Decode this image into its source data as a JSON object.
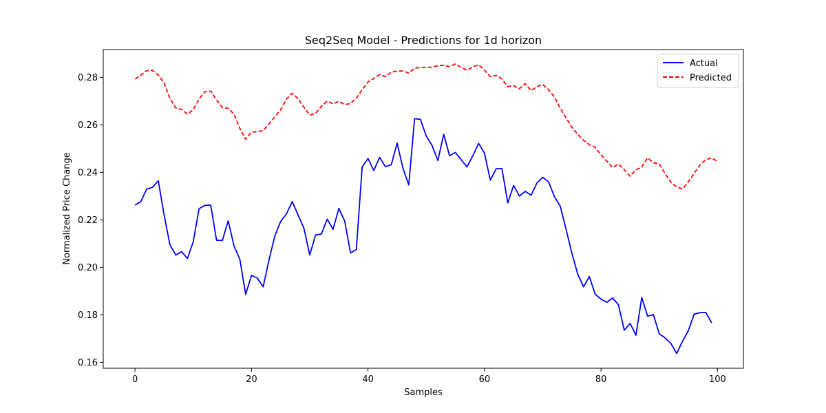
{
  "chart_data": {
    "type": "line",
    "title": "Seq2Seq Model - Predictions for 1d horizon",
    "xlabel": "Samples",
    "ylabel": "Normalized Price Change",
    "xlim": [
      -5.45,
      104.45
    ],
    "ylim": [
      0.1575,
      0.2917
    ],
    "xticks": [
      0,
      20,
      40,
      60,
      80,
      100
    ],
    "xtick_labels": [
      "0",
      "20",
      "40",
      "60",
      "80",
      "100"
    ],
    "yticks": [
      0.16,
      0.18,
      0.2,
      0.22,
      0.24,
      0.26,
      0.28
    ],
    "ytick_labels": [
      "0.16",
      "0.18",
      "0.20",
      "0.22",
      "0.24",
      "0.26",
      "0.28"
    ],
    "grid": false,
    "legend": {
      "position": "top-right"
    },
    "series": [
      {
        "name": "Actual",
        "color": "#0000ff",
        "style": "solid",
        "values": [
          0.2262,
          0.2277,
          0.2329,
          0.2337,
          0.2365,
          0.222,
          0.2095,
          0.2052,
          0.2066,
          0.2037,
          0.2108,
          0.2247,
          0.2261,
          0.2262,
          0.2114,
          0.2113,
          0.2196,
          0.209,
          0.2034,
          0.1886,
          0.1966,
          0.1955,
          0.1918,
          0.203,
          0.2132,
          0.2193,
          0.2225,
          0.2277,
          0.222,
          0.2165,
          0.2052,
          0.2136,
          0.214,
          0.2203,
          0.216,
          0.2248,
          0.2195,
          0.2061,
          0.2075,
          0.2423,
          0.2458,
          0.2408,
          0.2463,
          0.2424,
          0.2432,
          0.2523,
          0.2418,
          0.2347,
          0.2626,
          0.2623,
          0.2553,
          0.2513,
          0.245,
          0.256,
          0.247,
          0.2484,
          0.2453,
          0.2423,
          0.247,
          0.2522,
          0.2481,
          0.2367,
          0.2415,
          0.2416,
          0.2271,
          0.2345,
          0.23,
          0.232,
          0.2304,
          0.2355,
          0.2379,
          0.236,
          0.2298,
          0.2258,
          0.2161,
          0.206,
          0.1972,
          0.1918,
          0.1961,
          0.1887,
          0.1866,
          0.1853,
          0.1871,
          0.1842,
          0.1735,
          0.1764,
          0.1714,
          0.1873,
          0.1794,
          0.1801,
          0.172,
          0.1703,
          0.168,
          0.1637,
          0.1689,
          0.1733,
          0.1803,
          0.1809,
          0.181,
          0.1766
        ]
      },
      {
        "name": "Predicted",
        "color": "#ff0000",
        "style": "dashed",
        "values": [
          0.2793,
          0.2809,
          0.2828,
          0.2829,
          0.281,
          0.2775,
          0.2711,
          0.2671,
          0.2665,
          0.2645,
          0.2664,
          0.2708,
          0.274,
          0.2742,
          0.2705,
          0.2672,
          0.267,
          0.2645,
          0.2585,
          0.2539,
          0.257,
          0.2571,
          0.2576,
          0.2604,
          0.2633,
          0.2664,
          0.2708,
          0.2733,
          0.271,
          0.2674,
          0.2641,
          0.2648,
          0.2678,
          0.27,
          0.2688,
          0.2699,
          0.2685,
          0.269,
          0.2712,
          0.2748,
          0.2781,
          0.2795,
          0.2812,
          0.2803,
          0.2822,
          0.2826,
          0.2827,
          0.2818,
          0.2839,
          0.2841,
          0.2843,
          0.2842,
          0.2849,
          0.2851,
          0.2845,
          0.2856,
          0.2842,
          0.283,
          0.2844,
          0.2853,
          0.283,
          0.2803,
          0.2808,
          0.2793,
          0.2761,
          0.2765,
          0.2752,
          0.2773,
          0.2744,
          0.2761,
          0.277,
          0.2748,
          0.2718,
          0.267,
          0.263,
          0.259,
          0.256,
          0.2535,
          0.2516,
          0.2506,
          0.2474,
          0.2447,
          0.242,
          0.2435,
          0.2411,
          0.2384,
          0.2411,
          0.2422,
          0.2461,
          0.244,
          0.2436,
          0.2395,
          0.2358,
          0.2338,
          0.233,
          0.236,
          0.2396,
          0.2431,
          0.2454,
          0.246,
          0.2446
        ]
      }
    ]
  }
}
